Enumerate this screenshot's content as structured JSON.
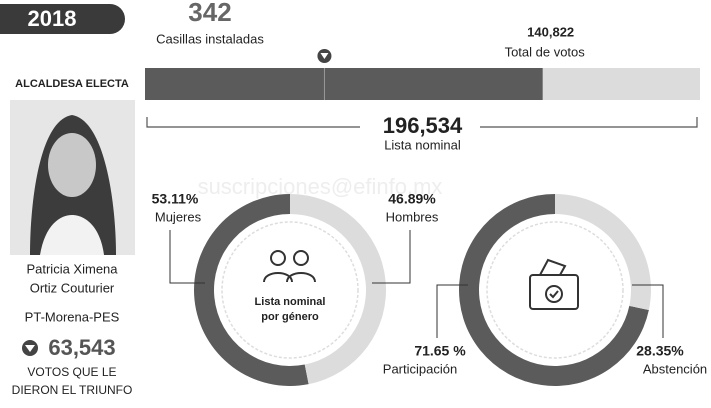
{
  "header": {
    "year": "2018",
    "casillas": 342,
    "casillas_caption": "Casillas instaladas"
  },
  "candidate": {
    "heading": "ALCALDESA ELECTA",
    "name": [
      "Patricia Ximena",
      "Ortiz Couturier"
    ],
    "party": "PT-Morena-PES",
    "votes": {
      "value": 63543,
      "label": "63,543"
    },
    "votes_caption": [
      "VOTOS QUE LE",
      "DIERON EL TRIUNFO"
    ]
  },
  "watermark": "suscripciones@efinfo.mx",
  "chart_data": [
    {
      "type": "bar",
      "values": [
        140822
      ],
      "value_labels": [
        "140,822"
      ],
      "value_caption": "Total de votos",
      "color": "#5b5b5b",
      "background_color": "#dcdcdc",
      "xlim": [
        0,
        196534
      ],
      "xticks": [
        {
          "value": 196534,
          "label": "196,534"
        }
      ],
      "xlabel": "Lista nominal"
    },
    {
      "type": "pie",
      "categories": [
        "Mujeres",
        "Hombres"
      ],
      "values": [
        53.11,
        46.89
      ],
      "value_labels": [
        "53.11%",
        "46.89%"
      ],
      "colors": [
        "#5b5b5b",
        "#dcdcdc"
      ],
      "center_label": [
        "Lista nominal",
        "por género"
      ]
    },
    {
      "type": "pie",
      "categories": [
        "Participación",
        "Abstención"
      ],
      "values": [
        71.65,
        28.35
      ],
      "value_labels": [
        "71.65 %",
        "28.35%"
      ],
      "colors": [
        "#5b5b5b",
        "#dcdcdc"
      ]
    }
  ]
}
